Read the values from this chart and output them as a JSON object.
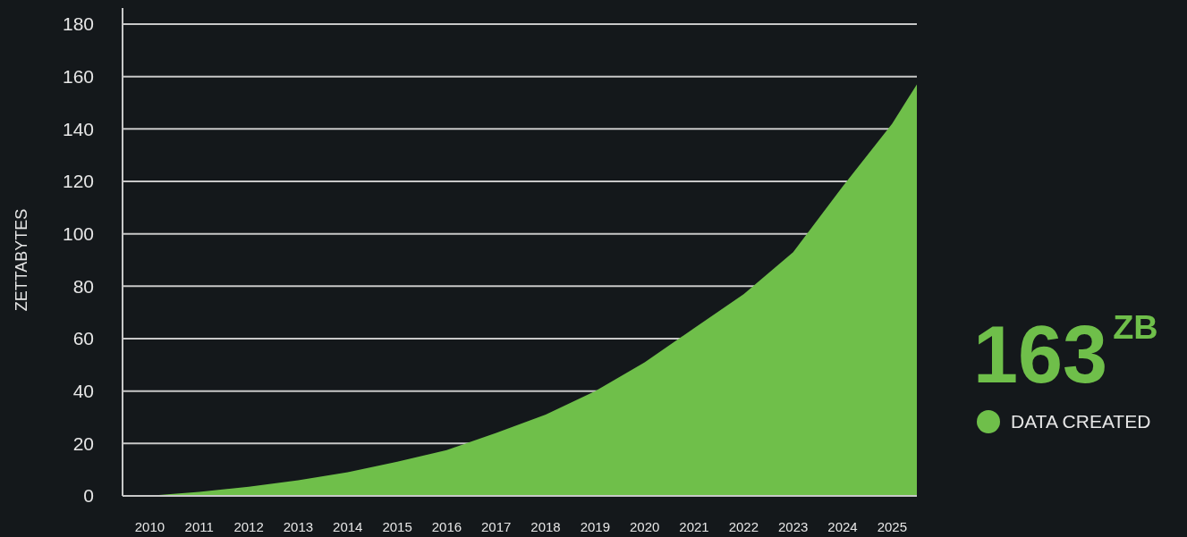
{
  "chart_data": {
    "type": "area",
    "ylabel": "ZETTABYTES",
    "x": [
      2009.95,
      2011,
      2012,
      2013,
      2014,
      2015,
      2016,
      2017,
      2018,
      2019,
      2020,
      2021,
      2022,
      2023,
      2024,
      2025,
      2025.5
    ],
    "series": [
      {
        "name": "DATA CREATED",
        "color": "#6fbf4a",
        "values": [
          0,
          1.5,
          3.5,
          6,
          9,
          13,
          17.5,
          24,
          31,
          40,
          51,
          64,
          77,
          93,
          118,
          142,
          157
        ]
      }
    ],
    "xlim": [
      2009.45,
      2025.5
    ],
    "xticks": [
      2010,
      2011,
      2012,
      2013,
      2014,
      2015,
      2016,
      2017,
      2018,
      2019,
      2020,
      2021,
      2022,
      2023,
      2024,
      2025
    ],
    "ylim": [
      0,
      180
    ],
    "yticks": [
      0,
      20,
      40,
      60,
      80,
      100,
      120,
      140,
      160,
      180
    ],
    "grid": "y",
    "legend": "right",
    "annotations": [
      "163$^{ZB}$"
    ]
  }
}
